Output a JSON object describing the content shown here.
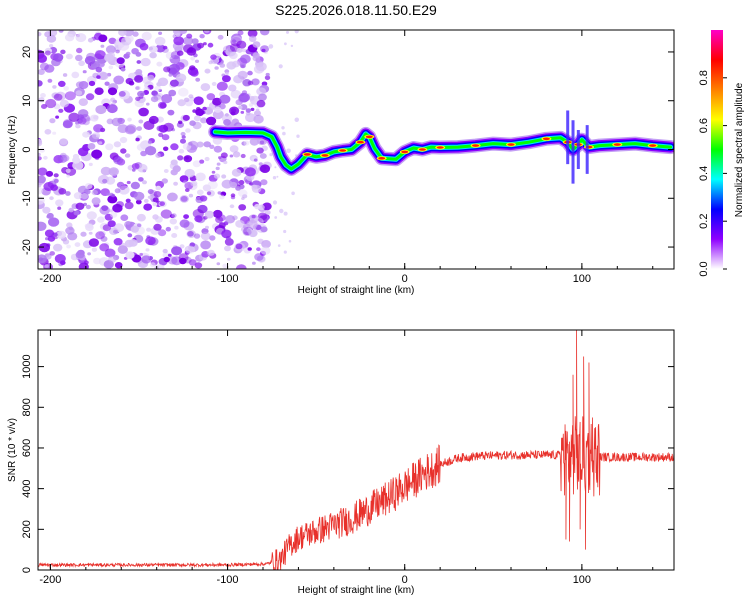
{
  "title": "S225.2026.018.11.50.E29",
  "chart_data": [
    {
      "type": "heatmap",
      "name": "spectrogram",
      "xlabel": "Height of straight line (km)",
      "ylabel": "Frequency (Hz)",
      "xlim": [
        -207,
        152
      ],
      "ylim": [
        -24.5,
        24.5
      ],
      "xticks": [
        -200,
        -100,
        0,
        100
      ],
      "yticks": [
        -20,
        -10,
        0,
        10,
        20
      ],
      "noise_region_x": [
        -207,
        -77
      ],
      "signal_start_x": -107,
      "ridge": [
        [
          -107,
          3.6
        ],
        [
          -100,
          3.4
        ],
        [
          -90,
          3.5
        ],
        [
          -80,
          3.4
        ],
        [
          -75,
          2.6
        ],
        [
          -72,
          0.5
        ],
        [
          -70,
          -1.5
        ],
        [
          -67,
          -3.2
        ],
        [
          -64,
          -4.0
        ],
        [
          -60,
          -3.0
        ],
        [
          -55,
          -1.0
        ],
        [
          -50,
          -1.5
        ],
        [
          -45,
          -1.2
        ],
        [
          -40,
          -0.5
        ],
        [
          -35,
          -0.2
        ],
        [
          -30,
          0.0
        ],
        [
          -25,
          1.5
        ],
        [
          -22,
          3.2
        ],
        [
          -20,
          2.6
        ],
        [
          -17,
          0.2
        ],
        [
          -13,
          -1.8
        ],
        [
          -5,
          -2.0
        ],
        [
          0,
          -0.5
        ],
        [
          5,
          0.3
        ],
        [
          10,
          0.0
        ],
        [
          15,
          0.5
        ],
        [
          20,
          0.4
        ],
        [
          30,
          0.5
        ],
        [
          40,
          0.8
        ],
        [
          50,
          1.2
        ],
        [
          60,
          1.0
        ],
        [
          70,
          1.5
        ],
        [
          80,
          2.2
        ],
        [
          88,
          2.4
        ],
        [
          92,
          1.5
        ],
        [
          95,
          0.0
        ],
        [
          98,
          1.0
        ],
        [
          100,
          2.0
        ],
        [
          104,
          0.5
        ],
        [
          110,
          0.8
        ],
        [
          120,
          1.0
        ],
        [
          130,
          1.2
        ],
        [
          140,
          0.8
        ],
        [
          150,
          0.5
        ]
      ],
      "colorbar": {
        "label": "Normalized spectral amplitude",
        "range": [
          0.0,
          1.0
        ],
        "ticks": [
          0.0,
          0.2,
          0.4,
          0.6,
          0.8
        ],
        "tick_labels": [
          "0.0",
          "0.2",
          "0.4",
          "0.6",
          "0.8"
        ],
        "colors": [
          "#ffffff",
          "#8f00ff",
          "#0000ff",
          "#00ffff",
          "#00ff00",
          "#ffff00",
          "#ff8000",
          "#ff0000",
          "#ff00c8"
        ]
      }
    },
    {
      "type": "line",
      "name": "snr",
      "xlabel": "Height of straight line (km)",
      "ylabel": "SNR (10 * v/v)",
      "xlim": [
        -207,
        152
      ],
      "ylim": [
        0,
        1180
      ],
      "xticks": [
        -200,
        -100,
        0,
        100
      ],
      "yticks": [
        0,
        200,
        400,
        600,
        800,
        1000
      ],
      "color": "#e8312b",
      "envelope": [
        [
          -207,
          25
        ],
        [
          -150,
          25
        ],
        [
          -100,
          25
        ],
        [
          -78,
          30
        ],
        [
          -70,
          50
        ],
        [
          -65,
          120
        ],
        [
          -60,
          160
        ],
        [
          -50,
          190
        ],
        [
          -40,
          220
        ],
        [
          -30,
          250
        ],
        [
          -20,
          300
        ],
        [
          -10,
          350
        ],
        [
          0,
          410
        ],
        [
          10,
          470
        ],
        [
          20,
          520
        ],
        [
          30,
          550
        ],
        [
          40,
          560
        ],
        [
          60,
          565
        ],
        [
          80,
          565
        ],
        [
          90,
          565
        ],
        [
          100,
          560
        ],
        [
          110,
          555
        ],
        [
          130,
          555
        ],
        [
          152,
          555
        ]
      ],
      "spikes": [
        [
          97,
          1180
        ],
        [
          93,
          140
        ],
        [
          101,
          1050
        ],
        [
          99,
          200
        ],
        [
          104,
          1020
        ],
        [
          102,
          100
        ],
        [
          106,
          750
        ],
        [
          95,
          960
        ],
        [
          91,
          150
        ],
        [
          108,
          600
        ],
        [
          89,
          650
        ]
      ]
    }
  ]
}
